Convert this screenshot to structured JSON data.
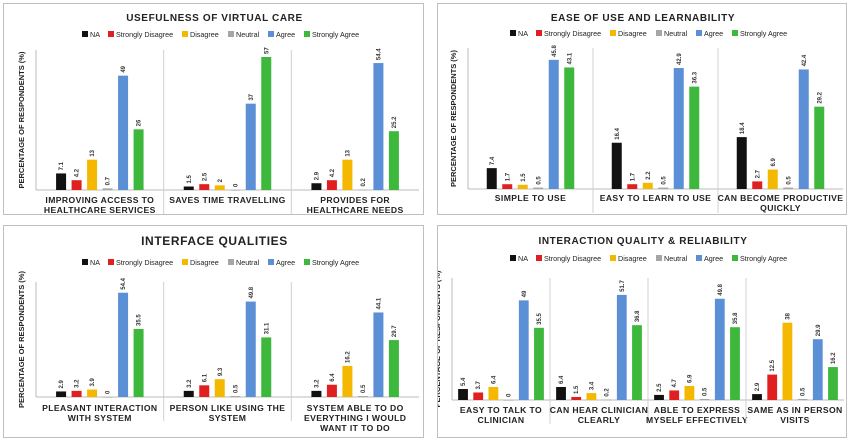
{
  "colors": {
    "NA": "#111111",
    "Strongly Disagree": "#e02020",
    "Disagree": "#f5b800",
    "Neutral": "#a6a6a6",
    "Agree": "#5b8fd6",
    "Strongly Agree": "#3db83d"
  },
  "chart_data": [
    {
      "type": "bar",
      "title": "USEFULNESS OF VIRTUAL CARE",
      "ylabel": "PERCENTAGE OF RESPONDENTS (%)",
      "ylim": [
        0,
        60
      ],
      "legend_position": "top",
      "categories": [
        [
          "IMPROVING ACCESS TO",
          "HEALTHCARE SERVICES"
        ],
        [
          "SAVES TIME TRAVELLING"
        ],
        [
          "PROVIDES FOR",
          "HEALTHCARE NEEDS"
        ]
      ],
      "series": [
        {
          "name": "NA",
          "values": [
            7.1,
            1.5,
            2.9
          ]
        },
        {
          "name": "Strongly Disagree",
          "values": [
            4.2,
            2.5,
            4.2
          ]
        },
        {
          "name": "Disagree",
          "values": [
            13,
            2,
            13
          ]
        },
        {
          "name": "Neutral",
          "values": [
            0.7,
            0,
            0.2
          ]
        },
        {
          "name": "Agree",
          "values": [
            49,
            37,
            54.4
          ]
        },
        {
          "name": "Strongly Agree",
          "values": [
            26,
            57,
            25.2
          ]
        }
      ]
    },
    {
      "type": "bar",
      "title": "EASE OF USE AND LEARNABILITY",
      "ylabel": "PERCENTAGE OF RESPONDENTS (%)",
      "ylim": [
        0,
        50
      ],
      "legend_position": "top",
      "categories": [
        [
          "SIMPLE TO USE"
        ],
        [
          "EASY TO LEARN TO USE"
        ],
        [
          "CAN BECOME PRODUCTIVE",
          "QUICKLY"
        ]
      ],
      "series": [
        {
          "name": "NA",
          "values": [
            7.4,
            16.4,
            18.4
          ]
        },
        {
          "name": "Strongly Disagree",
          "values": [
            1.7,
            1.7,
            2.7
          ]
        },
        {
          "name": "Disagree",
          "values": [
            1.5,
            2.2,
            6.9
          ]
        },
        {
          "name": "Neutral",
          "values": [
            0.5,
            0.5,
            0.5
          ]
        },
        {
          "name": "Agree",
          "values": [
            45.8,
            42.9,
            42.4
          ]
        },
        {
          "name": "Strongly Agree",
          "values": [
            43.1,
            36.3,
            29.2
          ]
        }
      ]
    },
    {
      "type": "bar",
      "title": "INTERFACE QUALITIES",
      "ylabel": "PERCENTAGE OF RESPONDENTS (%)",
      "ylim": [
        0,
        60
      ],
      "legend_position": "top",
      "categories": [
        [
          "PLEASANT INTERACTION",
          "WITH SYSTEM"
        ],
        [
          "PERSON LIKE USING THE",
          "SYSTEM"
        ],
        [
          "SYSTEM ABLE TO DO",
          "EVERYTHING I WOULD",
          "WANT IT TO DO"
        ]
      ],
      "series": [
        {
          "name": "NA",
          "values": [
            2.9,
            3.2,
            3.2
          ]
        },
        {
          "name": "Strongly Disagree",
          "values": [
            3.2,
            6.1,
            6.4
          ]
        },
        {
          "name": "Disagree",
          "values": [
            3.9,
            9.3,
            16.2
          ]
        },
        {
          "name": "Neutral",
          "values": [
            0,
            0.5,
            0.5
          ]
        },
        {
          "name": "Agree",
          "values": [
            54.4,
            49.8,
            44.1
          ]
        },
        {
          "name": "Strongly Agree",
          "values": [
            35.5,
            31.1,
            29.7
          ]
        }
      ]
    },
    {
      "type": "bar",
      "title": "INTERACTION QUALITY & RELIABILITY",
      "ylabel": "PERCENTAGE OF RESPONDENTS (%)",
      "ylim": [
        0,
        60
      ],
      "legend_position": "top",
      "categories": [
        [
          "EASY TO TALK TO",
          "CLINICIAN"
        ],
        [
          "CAN HEAR CLINICIAN",
          "CLEARLY"
        ],
        [
          "ABLE TO EXPRESS",
          "MYSELF EFFECTIVELY"
        ],
        [
          "SAME AS IN PERSON",
          "VISITS"
        ]
      ],
      "series": [
        {
          "name": "NA",
          "values": [
            5.4,
            6.4,
            2.5,
            2.9
          ]
        },
        {
          "name": "Strongly Disagree",
          "values": [
            3.7,
            1.5,
            4.7,
            12.5
          ]
        },
        {
          "name": "Disagree",
          "values": [
            6.4,
            3.4,
            6.9,
            38
          ]
        },
        {
          "name": "Neutral",
          "values": [
            0,
            0.2,
            0.5,
            0.5
          ]
        },
        {
          "name": "Agree",
          "values": [
            49,
            51.7,
            49.8,
            29.9
          ]
        },
        {
          "name": "Strongly Agree",
          "values": [
            35.5,
            36.8,
            35.8,
            16.2
          ]
        }
      ]
    }
  ]
}
